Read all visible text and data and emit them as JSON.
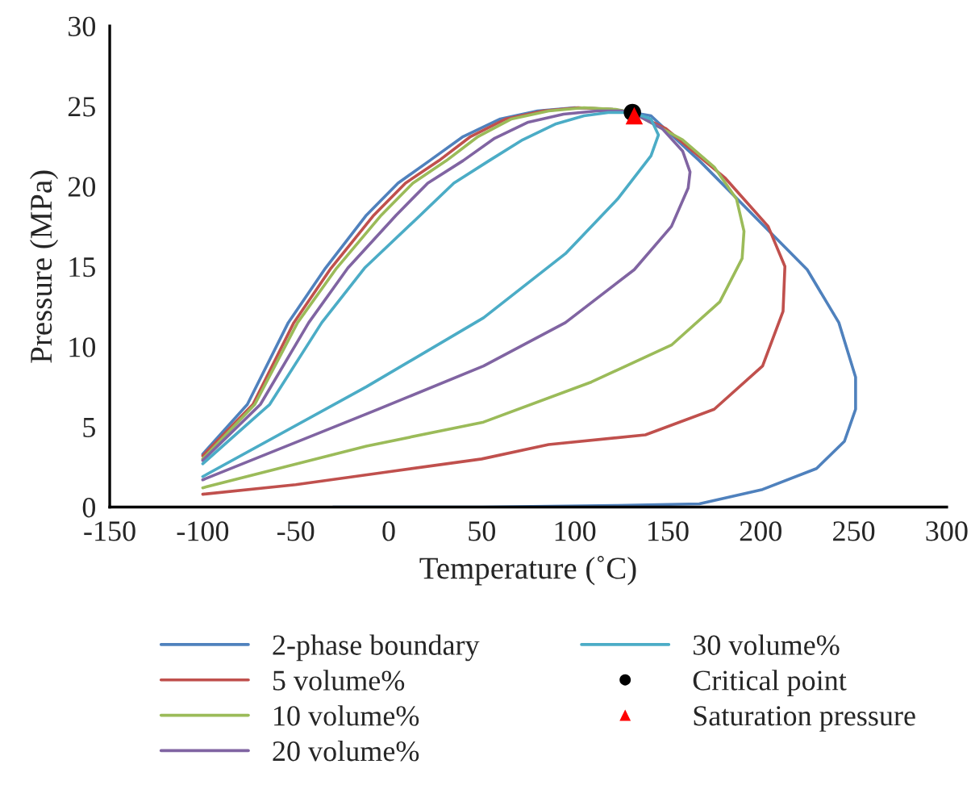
{
  "chart_data": {
    "type": "line",
    "xlabel": "Temperature (˚C)",
    "ylabel": "Pressure (MPa)",
    "xlim": [
      -150,
      300
    ],
    "xticks": [
      -150,
      -100,
      -50,
      0,
      50,
      100,
      150,
      200,
      250,
      300
    ],
    "ylim": [
      0,
      30
    ],
    "yticks": [
      0,
      5,
      10,
      15,
      20,
      25,
      30
    ],
    "grid": false,
    "legend": "bottom",
    "marker": "none",
    "series": [
      {
        "name": "2-phase boundary",
        "color": "#4f81bd",
        "x": [
          -100,
          -76,
          -54,
          -34,
          -12,
          5,
          22,
          40,
          60,
          80,
          100,
          120,
          131,
          141,
          152,
          167,
          196,
          225,
          242,
          251,
          251,
          245,
          230,
          201,
          167,
          123,
          50,
          -30
        ],
        "values": [
          3.3,
          6.4,
          11.5,
          14.9,
          18.2,
          20.2,
          21.6,
          23.1,
          24.2,
          24.7,
          24.9,
          24.8,
          24.6,
          24.4,
          23.2,
          21.6,
          18.2,
          14.8,
          11.5,
          8.1,
          6.1,
          4.1,
          2.4,
          1.1,
          0.2,
          0.1,
          0,
          0
        ]
      },
      {
        "name": "5 volume%",
        "color": "#c0504d",
        "x": [
          -100,
          -73,
          -51,
          -31,
          -8,
          9,
          27,
          44,
          63,
          83,
          102,
          120,
          131,
          149,
          181,
          204,
          213,
          212,
          201,
          175,
          138,
          86,
          50,
          0,
          -50,
          -100
        ],
        "values": [
          3.2,
          6.4,
          11.5,
          14.9,
          18.2,
          20.2,
          21.6,
          23.1,
          24.2,
          24.7,
          24.9,
          24.8,
          24.6,
          23.6,
          20.5,
          17.5,
          15,
          12.2,
          8.8,
          6.1,
          4.5,
          3.9,
          3.0,
          2.2,
          1.4,
          0.8
        ]
      },
      {
        "name": "10 volume%",
        "color": "#9bbb59",
        "x": [
          -100,
          -72,
          -49,
          -28,
          -4,
          13,
          31,
          48,
          66,
          86,
          105,
          122,
          131,
          158,
          175,
          187,
          191,
          190,
          178,
          152,
          109,
          51,
          -12,
          -100
        ],
        "values": [
          3.0,
          6.4,
          11.5,
          14.9,
          18.2,
          20.2,
          21.6,
          23.1,
          24.2,
          24.7,
          24.9,
          24.8,
          24.6,
          22.9,
          21.2,
          19.2,
          17.2,
          15.5,
          12.8,
          10.1,
          7.8,
          5.3,
          3.8,
          1.2
        ]
      },
      {
        "name": "20 volume%",
        "color": "#8064a2",
        "x": [
          -100,
          -69,
          -43,
          -22,
          4,
          21,
          40,
          57,
          75,
          94,
          112,
          125,
          131,
          147,
          158,
          162,
          161,
          152,
          132,
          95,
          51,
          -12,
          -100
        ],
        "values": [
          2.9,
          6.4,
          11.5,
          14.9,
          18.2,
          20.2,
          21.6,
          23.0,
          24.0,
          24.5,
          24.7,
          24.7,
          24.6,
          23.6,
          22.2,
          20.9,
          19.9,
          17.5,
          14.8,
          11.5,
          8.8,
          5.8,
          1.7
        ]
      },
      {
        "name": "30 volume%",
        "color": "#4bacc6",
        "x": [
          -100,
          -64,
          -36,
          -13,
          17,
          35,
          54,
          72,
          90,
          105,
          118,
          127,
          131,
          141,
          145,
          141,
          123,
          95,
          51,
          -12,
          -100
        ],
        "values": [
          2.7,
          6.4,
          11.5,
          14.9,
          18.2,
          20.2,
          21.6,
          22.9,
          23.9,
          24.4,
          24.6,
          24.6,
          24.6,
          24.2,
          23.2,
          21.9,
          19.2,
          15.8,
          11.8,
          7.5,
          1.9
        ]
      },
      {
        "name": "Critical point",
        "type": "scatter",
        "marker": "circle",
        "color": "#000000",
        "x": [
          131
        ],
        "values": [
          24.6
        ]
      },
      {
        "name": "Saturation pressure",
        "type": "scatter",
        "marker": "triangle",
        "color": "#ff0000",
        "x": [
          132
        ],
        "values": [
          24.4
        ]
      }
    ]
  }
}
